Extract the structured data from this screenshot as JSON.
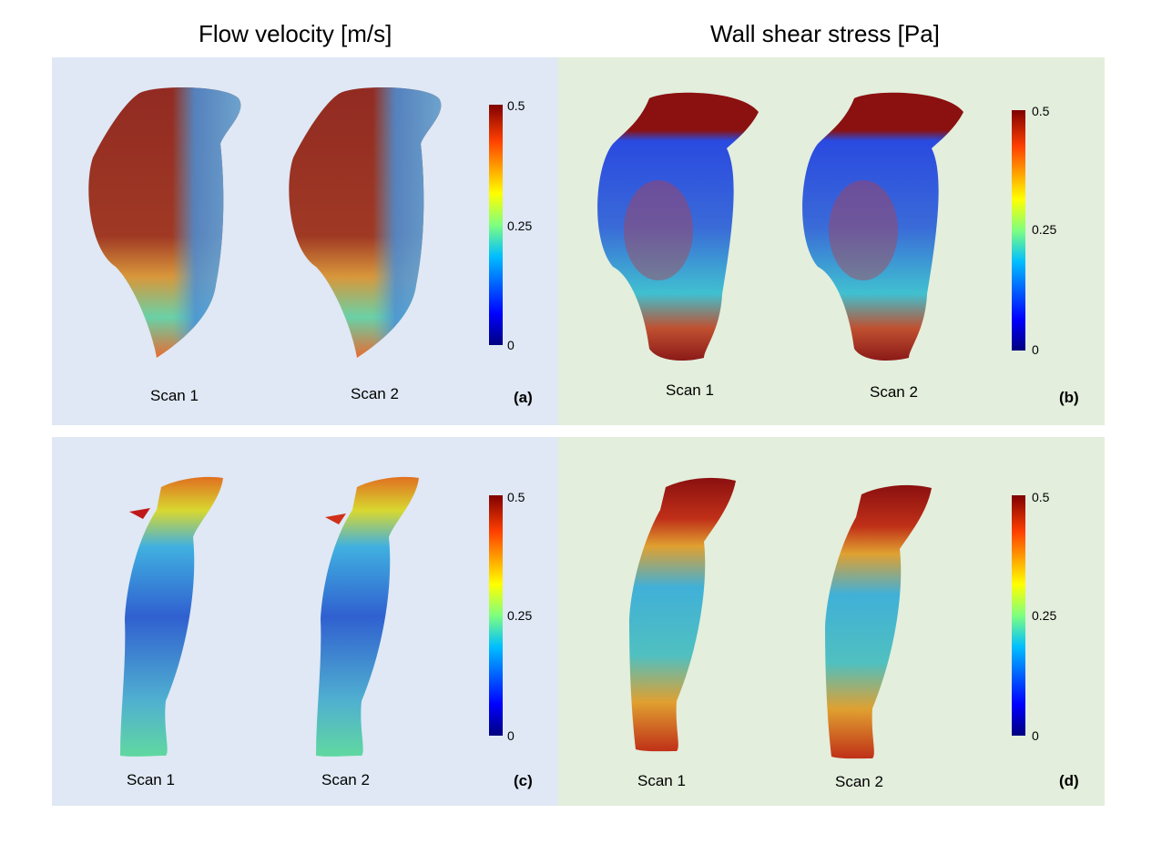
{
  "headers": {
    "left": "Flow velocity [m/s]",
    "right": "Wall shear stress [Pa]"
  },
  "panels": {
    "a": {
      "letter": "(a)",
      "scan1": "Scan 1",
      "scan2": "Scan 2",
      "cb_max": "0.5",
      "cb_mid": "0.25",
      "cb_min": "0"
    },
    "b": {
      "letter": "(b)",
      "scan1": "Scan 1",
      "scan2": "Scan 2",
      "cb_max": "0.5",
      "cb_mid": "0.25",
      "cb_min": "0"
    },
    "c": {
      "letter": "(c)",
      "scan1": "Scan 1",
      "scan2": "Scan 2",
      "cb_max": "0.5",
      "cb_mid": "0.25",
      "cb_min": "0"
    },
    "d": {
      "letter": "(d)",
      "scan1": "Scan 1",
      "scan2": "Scan 2",
      "cb_max": "0.5",
      "cb_mid": "0.25",
      "cb_min": "0"
    }
  },
  "colormap": [
    "#00007f",
    "#0000ff",
    "#00bfff",
    "#7fff7f",
    "#ffff00",
    "#ff3f00",
    "#7f0000"
  ]
}
